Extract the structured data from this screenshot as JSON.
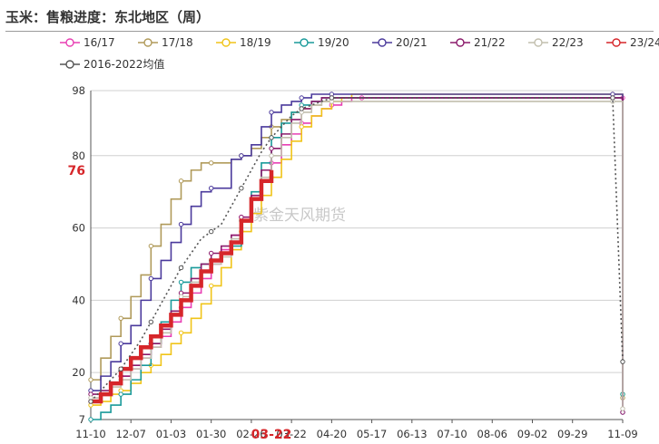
{
  "title": "玉米：售粮进度：东北地区（周）",
  "watermark": "紫金天风期货",
  "chart_data": {
    "type": "line",
    "title": "玉米：售粮进度：东北地区（周）",
    "xlabel": "",
    "ylabel": "",
    "x_ticks": [
      "11-10",
      "12-07",
      "01-03",
      "01-30",
      "02-26",
      "03-22",
      "04-20",
      "05-17",
      "06-13",
      "07-10",
      "08-06",
      "09-02",
      "09-29",
      "11-09"
    ],
    "highlight_x": "03-22",
    "y_ticks": [
      7,
      20,
      40,
      60,
      80,
      98
    ],
    "highlight_y": 76,
    "ylim": [
      7,
      98
    ],
    "grid": true,
    "legend_position": "top",
    "series": [
      {
        "name": "16/17",
        "color": "#e83fb3",
        "style": "step",
        "points": [
          [
            0,
            12
          ],
          [
            1,
            14
          ],
          [
            2,
            17
          ],
          [
            3,
            19
          ],
          [
            4,
            21
          ],
          [
            5,
            24
          ],
          [
            6,
            27
          ],
          [
            7,
            30
          ],
          [
            8,
            34
          ],
          [
            9,
            38
          ],
          [
            10,
            42
          ],
          [
            11,
            46
          ],
          [
            12,
            50
          ],
          [
            13,
            54
          ],
          [
            14,
            58
          ],
          [
            15,
            63
          ],
          [
            16,
            68
          ],
          [
            17,
            73
          ],
          [
            18,
            78
          ],
          [
            19,
            83
          ],
          [
            20,
            86
          ],
          [
            21,
            89
          ],
          [
            22,
            91
          ],
          [
            23,
            93
          ],
          [
            24,
            94
          ],
          [
            25,
            95
          ],
          [
            26,
            96
          ],
          [
            27,
            96
          ],
          [
            28,
            96
          ],
          [
            52,
            96
          ],
          [
            53,
            96
          ]
        ]
      },
      {
        "name": "17/18",
        "color": "#b09a5a",
        "style": "step",
        "points": [
          [
            0,
            18
          ],
          [
            1,
            24
          ],
          [
            2,
            30
          ],
          [
            3,
            35
          ],
          [
            4,
            41
          ],
          [
            5,
            47
          ],
          [
            6,
            55
          ],
          [
            7,
            61
          ],
          [
            8,
            68
          ],
          [
            9,
            73
          ],
          [
            10,
            76
          ],
          [
            11,
            78
          ],
          [
            12,
            78
          ],
          [
            13,
            78
          ],
          [
            14,
            79
          ],
          [
            15,
            80
          ],
          [
            16,
            82
          ],
          [
            17,
            85
          ],
          [
            18,
            88
          ],
          [
            19,
            90
          ],
          [
            20,
            92
          ],
          [
            21,
            93
          ],
          [
            22,
            94
          ],
          [
            23,
            95
          ],
          [
            24,
            96
          ],
          [
            25,
            96
          ],
          [
            26,
            96
          ],
          [
            52,
            96
          ],
          [
            53,
            13
          ]
        ]
      },
      {
        "name": "18/19",
        "color": "#f0c419",
        "style": "step",
        "points": [
          [
            0,
            11
          ],
          [
            1,
            12
          ],
          [
            2,
            14
          ],
          [
            3,
            15
          ],
          [
            4,
            17
          ],
          [
            5,
            20
          ],
          [
            6,
            22
          ],
          [
            7,
            25
          ],
          [
            8,
            28
          ],
          [
            9,
            31
          ],
          [
            10,
            35
          ],
          [
            11,
            39
          ],
          [
            12,
            44
          ],
          [
            13,
            49
          ],
          [
            14,
            54
          ],
          [
            15,
            59
          ],
          [
            16,
            64
          ],
          [
            17,
            69
          ],
          [
            18,
            74
          ],
          [
            19,
            79
          ],
          [
            20,
            84
          ],
          [
            21,
            88
          ],
          [
            22,
            91
          ],
          [
            23,
            93
          ],
          [
            24,
            95
          ],
          [
            25,
            96
          ],
          [
            26,
            97
          ],
          [
            52,
            97
          ],
          [
            53,
            14
          ]
        ]
      },
      {
        "name": "19/20",
        "color": "#1a9a9a",
        "style": "step",
        "points": [
          [
            0,
            7
          ],
          [
            1,
            9
          ],
          [
            2,
            11
          ],
          [
            3,
            14
          ],
          [
            4,
            18
          ],
          [
            5,
            22
          ],
          [
            6,
            28
          ],
          [
            7,
            34
          ],
          [
            8,
            40
          ],
          [
            9,
            45
          ],
          [
            10,
            49
          ],
          [
            11,
            50
          ],
          [
            12,
            51
          ],
          [
            13,
            53
          ],
          [
            14,
            55
          ],
          [
            15,
            62
          ],
          [
            16,
            70
          ],
          [
            17,
            78
          ],
          [
            18,
            85
          ],
          [
            19,
            89
          ],
          [
            20,
            92
          ],
          [
            21,
            94
          ],
          [
            22,
            95
          ],
          [
            23,
            96
          ],
          [
            24,
            96
          ],
          [
            25,
            96
          ],
          [
            26,
            96
          ],
          [
            52,
            96
          ],
          [
            53,
            14
          ]
        ]
      },
      {
        "name": "20/21",
        "color": "#4b3a9c",
        "style": "step",
        "points": [
          [
            0,
            15
          ],
          [
            1,
            19
          ],
          [
            2,
            23
          ],
          [
            3,
            28
          ],
          [
            4,
            33
          ],
          [
            5,
            40
          ],
          [
            6,
            46
          ],
          [
            7,
            51
          ],
          [
            8,
            56
          ],
          [
            9,
            61
          ],
          [
            10,
            66
          ],
          [
            11,
            70
          ],
          [
            12,
            71
          ],
          [
            13,
            71
          ],
          [
            14,
            79
          ],
          [
            15,
            80
          ],
          [
            16,
            83
          ],
          [
            17,
            88
          ],
          [
            18,
            92
          ],
          [
            19,
            94
          ],
          [
            20,
            95
          ],
          [
            21,
            96
          ],
          [
            22,
            97
          ],
          [
            23,
            97
          ],
          [
            24,
            97
          ],
          [
            25,
            97
          ],
          [
            26,
            97
          ],
          [
            52,
            97
          ],
          [
            53,
            9
          ]
        ]
      },
      {
        "name": "21/22",
        "color": "#8b1a6b",
        "style": "step",
        "points": [
          [
            0,
            14
          ],
          [
            1,
            15
          ],
          [
            2,
            17
          ],
          [
            3,
            19
          ],
          [
            4,
            22
          ],
          [
            5,
            25
          ],
          [
            6,
            28
          ],
          [
            7,
            32
          ],
          [
            8,
            37
          ],
          [
            9,
            42
          ],
          [
            10,
            46
          ],
          [
            11,
            50
          ],
          [
            12,
            53
          ],
          [
            13,
            55
          ],
          [
            14,
            58
          ],
          [
            15,
            63
          ],
          [
            16,
            69
          ],
          [
            17,
            76
          ],
          [
            18,
            82
          ],
          [
            19,
            86
          ],
          [
            20,
            90
          ],
          [
            21,
            93
          ],
          [
            22,
            95
          ],
          [
            23,
            96
          ],
          [
            24,
            96
          ],
          [
            25,
            96
          ],
          [
            26,
            96
          ],
          [
            52,
            96
          ],
          [
            53,
            9
          ]
        ]
      },
      {
        "name": "22/23",
        "color": "#c2bfae",
        "style": "step",
        "points": [
          [
            0,
            13
          ],
          [
            1,
            14
          ],
          [
            2,
            16
          ],
          [
            3,
            18
          ],
          [
            4,
            21
          ],
          [
            5,
            24
          ],
          [
            6,
            27
          ],
          [
            7,
            31
          ],
          [
            8,
            36
          ],
          [
            9,
            41
          ],
          [
            10,
            45
          ],
          [
            11,
            48
          ],
          [
            12,
            50
          ],
          [
            13,
            52
          ],
          [
            14,
            57
          ],
          [
            15,
            62
          ],
          [
            16,
            68
          ],
          [
            17,
            74
          ],
          [
            18,
            80
          ],
          [
            19,
            85
          ],
          [
            20,
            89
          ],
          [
            21,
            92
          ],
          [
            22,
            94
          ],
          [
            23,
            95
          ],
          [
            24,
            95
          ],
          [
            25,
            95
          ],
          [
            26,
            95
          ],
          [
            52,
            95
          ],
          [
            53,
            10
          ]
        ]
      },
      {
        "name": "23/24",
        "color": "#d6262a",
        "style": "bold",
        "points": [
          [
            0,
            12
          ],
          [
            1,
            14
          ],
          [
            2,
            17
          ],
          [
            3,
            21
          ],
          [
            4,
            24
          ],
          [
            5,
            27
          ],
          [
            6,
            30
          ],
          [
            7,
            33
          ],
          [
            8,
            36
          ],
          [
            9,
            40
          ],
          [
            10,
            44
          ],
          [
            11,
            48
          ],
          [
            12,
            51
          ],
          [
            13,
            53
          ],
          [
            14,
            56
          ],
          [
            15,
            62
          ],
          [
            16,
            68
          ],
          [
            17,
            73
          ],
          [
            18,
            76
          ]
        ]
      },
      {
        "name": "2016-2022均值",
        "color": "#555555",
        "style": "dotted",
        "points": [
          [
            0,
            12
          ],
          [
            1,
            15
          ],
          [
            2,
            18
          ],
          [
            3,
            21
          ],
          [
            4,
            25
          ],
          [
            5,
            29
          ],
          [
            6,
            34
          ],
          [
            7,
            39
          ],
          [
            8,
            44
          ],
          [
            9,
            49
          ],
          [
            10,
            53
          ],
          [
            11,
            57
          ],
          [
            12,
            59
          ],
          [
            13,
            61
          ],
          [
            14,
            66
          ],
          [
            15,
            71
          ],
          [
            16,
            76
          ],
          [
            17,
            81
          ],
          [
            18,
            85
          ],
          [
            19,
            88
          ],
          [
            20,
            91
          ],
          [
            21,
            93
          ],
          [
            22,
            94
          ],
          [
            23,
            95
          ],
          [
            24,
            96
          ],
          [
            25,
            96
          ],
          [
            26,
            96
          ],
          [
            52,
            96
          ],
          [
            53,
            23
          ]
        ]
      }
    ]
  }
}
